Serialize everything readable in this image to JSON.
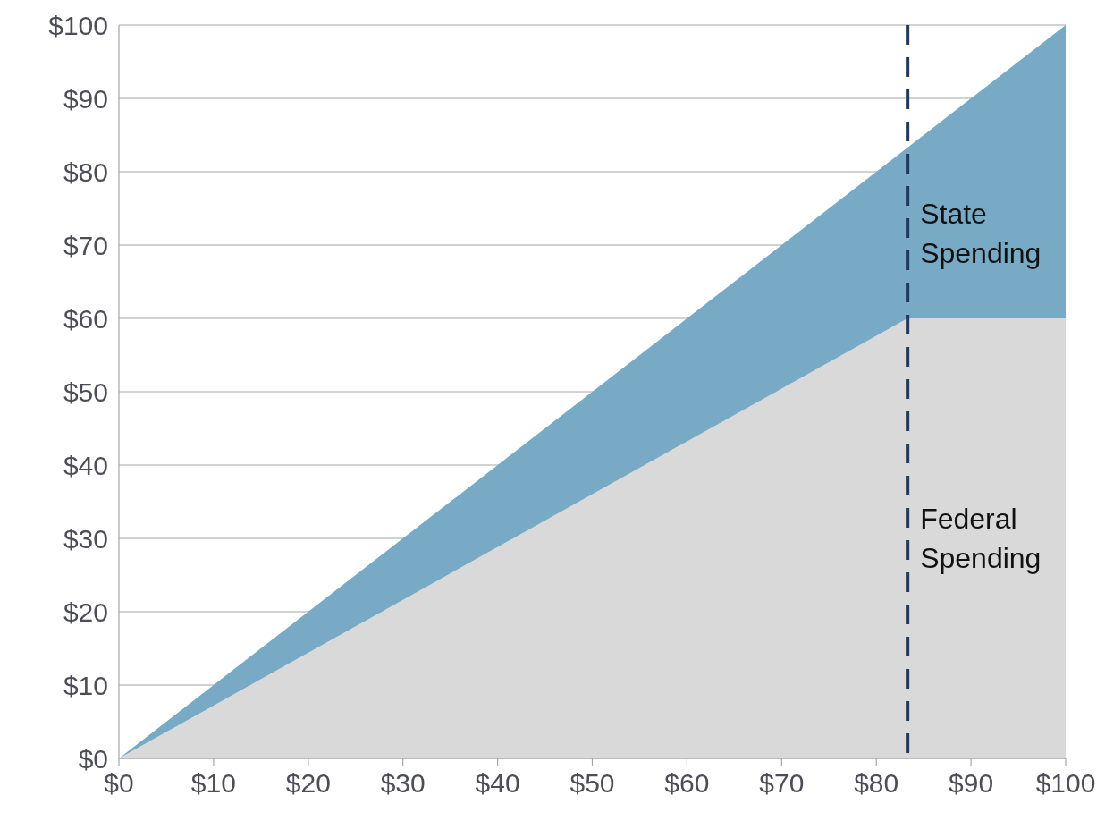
{
  "chart_data": {
    "type": "area",
    "stacked": true,
    "x": [
      0,
      83.3,
      100
    ],
    "series": [
      {
        "name": "Federal Spending",
        "color": "#d9d9d9",
        "values": [
          0,
          60,
          60
        ]
      },
      {
        "name": "State Spending",
        "color": "#78aac6",
        "values": [
          0,
          23.3,
          40
        ]
      }
    ],
    "xlim": [
      0,
      100
    ],
    "ylim": [
      0,
      100
    ],
    "xticks": [
      {
        "value": 0,
        "label": "$0"
      },
      {
        "value": 10,
        "label": "$10"
      },
      {
        "value": 20,
        "label": "$20"
      },
      {
        "value": 30,
        "label": "$30"
      },
      {
        "value": 40,
        "label": "$40"
      },
      {
        "value": 50,
        "label": "$50"
      },
      {
        "value": 60,
        "label": "$60"
      },
      {
        "value": 70,
        "label": "$70"
      },
      {
        "value": 80,
        "label": "$80"
      },
      {
        "value": 90,
        "label": "$90"
      },
      {
        "value": 100,
        "label": "$100"
      }
    ],
    "yticks": [
      {
        "value": 0,
        "label": "$0"
      },
      {
        "value": 10,
        "label": "$10"
      },
      {
        "value": 20,
        "label": "$20"
      },
      {
        "value": 30,
        "label": "$30"
      },
      {
        "value": 40,
        "label": "$40"
      },
      {
        "value": 50,
        "label": "$50"
      },
      {
        "value": 60,
        "label": "$60"
      },
      {
        "value": 70,
        "label": "$70"
      },
      {
        "value": 80,
        "label": "$80"
      },
      {
        "value": 90,
        "label": "$90"
      },
      {
        "value": 100,
        "label": "$100"
      }
    ],
    "grid": "y",
    "ref_lines": [
      {
        "axis": "x",
        "value": 83.3,
        "color": "#1f3a5f",
        "line_style": "dashed"
      }
    ]
  }
}
